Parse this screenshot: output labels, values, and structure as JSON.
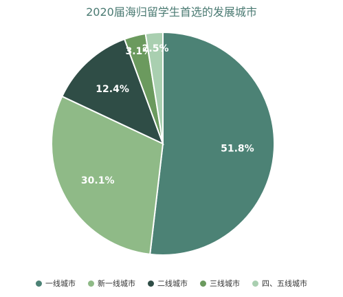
{
  "chart_data": {
    "type": "pie",
    "title": "2020届海归留学生首选的发展城市",
    "categories": [
      "一线城市",
      "新一线城市",
      "二线城市",
      "三线城市",
      "四、五线城市"
    ],
    "values": [
      51.8,
      30.1,
      12.4,
      3.1,
      2.5
    ],
    "value_labels": [
      "51.8%",
      "30.1%",
      "12.4%",
      "3.1%",
      "2.5%"
    ],
    "colors": [
      "#4c8275",
      "#8fba87",
      "#2f4d46",
      "#6b9a5e",
      "#a9cfb0"
    ],
    "legend_position": "bottom"
  }
}
